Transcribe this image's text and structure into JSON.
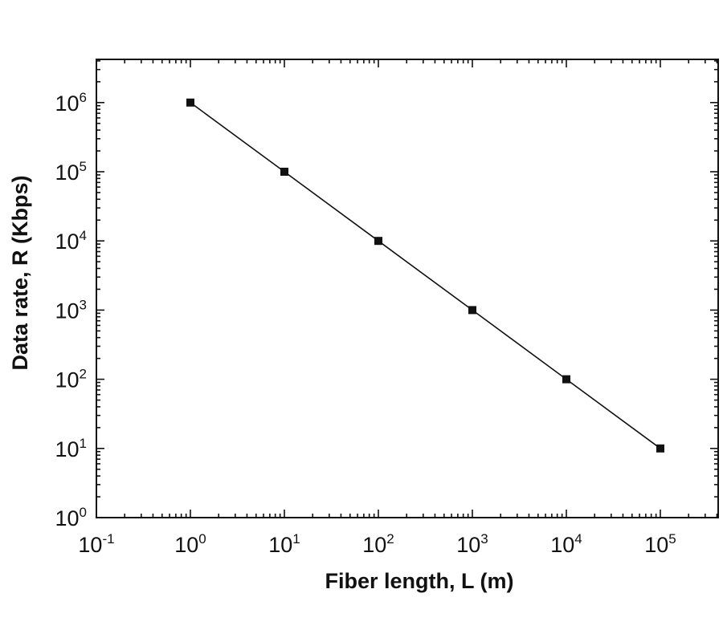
{
  "chart_data": {
    "type": "line",
    "xlabel": "Fiber length, L (m)",
    "ylabel": "Data rate, R (Kbps)",
    "xscale": "log",
    "yscale": "log",
    "xlim": [
      0.1,
      400000
    ],
    "ylim": [
      1,
      5000000
    ],
    "x_ticks": [
      {
        "base": "10",
        "exp": "-1",
        "value": 0.1
      },
      {
        "base": "10",
        "exp": "0",
        "value": 1
      },
      {
        "base": "10",
        "exp": "1",
        "value": 10
      },
      {
        "base": "10",
        "exp": "2",
        "value": 100
      },
      {
        "base": "10",
        "exp": "3",
        "value": 1000
      },
      {
        "base": "10",
        "exp": "4",
        "value": 10000
      },
      {
        "base": "10",
        "exp": "5",
        "value": 100000
      }
    ],
    "y_ticks": [
      {
        "base": "10",
        "exp": "0",
        "value": 1
      },
      {
        "base": "10",
        "exp": "1",
        "value": 10
      },
      {
        "base": "10",
        "exp": "2",
        "value": 100
      },
      {
        "base": "10",
        "exp": "3",
        "value": 1000
      },
      {
        "base": "10",
        "exp": "4",
        "value": 10000
      },
      {
        "base": "10",
        "exp": "5",
        "value": 100000
      },
      {
        "base": "10",
        "exp": "6",
        "value": 1000000
      }
    ],
    "series": [
      {
        "x": [
          1,
          10,
          100,
          1000,
          10000,
          100000
        ],
        "y": [
          1000000,
          100000,
          10000,
          1000,
          100,
          10
        ],
        "marker": "square",
        "color": "#111111"
      }
    ],
    "grid": false,
    "legend": "none"
  }
}
